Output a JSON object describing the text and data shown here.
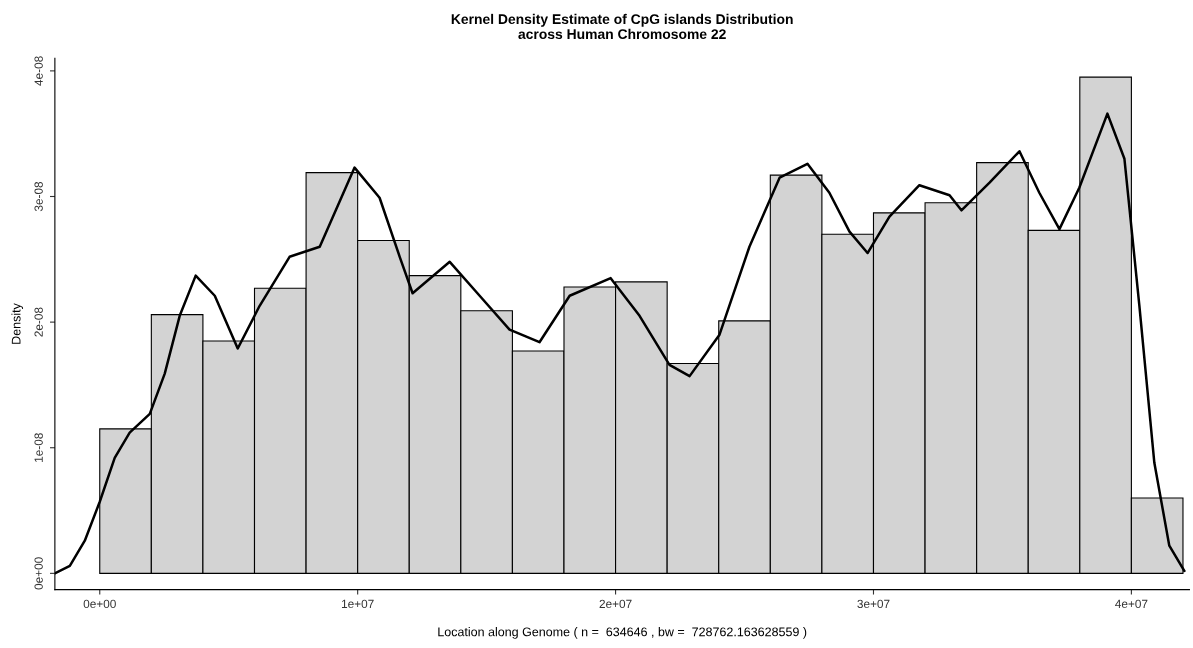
{
  "chart_data": {
    "type": "histogram",
    "title": "Kernel Density Estimate of CpG islands Distribution\nacross Human Chromosome 22",
    "xlabel": "Location along Genome ( n =  634646 , bw =  728762.163628559 )",
    "ylabel": "Density",
    "xlim": [
      -1740000,
      42250000
    ],
    "ylim": [
      -1.3e-09,
      4.1e-08
    ],
    "xticks": [
      {
        "value": 0,
        "label": "0e+00"
      },
      {
        "value": 10000000,
        "label": "1e+07"
      },
      {
        "value": 20000000,
        "label": "2e+07"
      },
      {
        "value": 30000000,
        "label": "3e+07"
      },
      {
        "value": 40000000,
        "label": "4e+07"
      }
    ],
    "yticks": [
      {
        "value": 0,
        "label": "0e+00"
      },
      {
        "value": 1e-08,
        "label": "1e-08"
      },
      {
        "value": 2e-08,
        "label": "2e-08"
      },
      {
        "value": 3e-08,
        "label": "3e-08"
      },
      {
        "value": 4e-08,
        "label": "4e-08"
      }
    ],
    "grid": false,
    "legend": false,
    "series": [
      {
        "color": "#d3d3d3",
        "bins": [
          0,
          2000000,
          4000000,
          6000000,
          8000000,
          10000000,
          12000000,
          14000000,
          16000000,
          18000000,
          20000000,
          22000000,
          24000000,
          26000000,
          28000000,
          30000000,
          32000000,
          34000000,
          36000000,
          38000000,
          40000000,
          42000000
        ],
        "values": [
          1.15e-08,
          2.06e-08,
          1.85e-08,
          2.27e-08,
          3.19e-08,
          2.65e-08,
          2.37e-08,
          2.09e-08,
          1.77e-08,
          2.28e-08,
          2.32e-08,
          1.67e-08,
          2.01e-08,
          3.17e-08,
          2.7e-08,
          2.87e-08,
          2.95e-08,
          3.27e-08,
          2.73e-08,
          3.95e-08,
          6e-09
        ]
      },
      {
        "type": "line",
        "color": "#000000",
        "line_style": "solid",
        "x": [
          -1740000,
          -1160000,
          -580000,
          0,
          580000,
          1160000,
          1940000,
          2520000,
          3100000,
          3720000,
          4460000,
          5350000,
          6200000,
          7360000,
          8530000,
          9880000,
          10850000,
          11630000,
          12130000,
          13570000,
          14730000,
          15890000,
          17050000,
          18220000,
          19810000,
          20930000,
          22090000,
          22870000,
          24030000,
          25190000,
          26360000,
          27440000,
          28290000,
          29070000,
          29770000,
          30620000,
          31780000,
          32950000,
          33410000,
          34500000,
          35660000,
          36430000,
          37210000,
          37980000,
          39070000,
          39730000,
          40310000,
          40890000,
          41470000,
          42050000
        ],
        "values": [
          0,
          6e-10,
          2.6e-09,
          5.7e-09,
          9.2e-09,
          1.12e-08,
          1.27e-08,
          1.59e-08,
          2.05e-08,
          2.37e-08,
          2.21e-08,
          1.79e-08,
          2.13e-08,
          2.52e-08,
          2.6e-08,
          3.23e-08,
          2.99e-08,
          2.52e-08,
          2.23e-08,
          2.48e-08,
          2.21e-08,
          1.94e-08,
          1.84e-08,
          2.21e-08,
          2.35e-08,
          2.05e-08,
          1.66e-08,
          1.57e-08,
          1.9e-08,
          2.6e-08,
          3.15e-08,
          3.26e-08,
          3.03e-08,
          2.72e-08,
          2.55e-08,
          2.84e-08,
          3.09e-08,
          3.01e-08,
          2.89e-08,
          3.11e-08,
          3.36e-08,
          3.03e-08,
          2.74e-08,
          3.07e-08,
          3.66e-08,
          3.3e-08,
          2.13e-08,
          8.8e-09,
          2.2e-09,
          2e-10
        ]
      }
    ]
  }
}
